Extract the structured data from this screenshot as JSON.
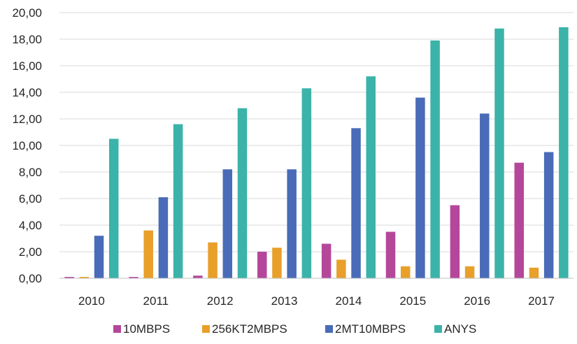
{
  "chart_data": {
    "type": "bar",
    "title": "",
    "xlabel": "",
    "ylabel": "",
    "categories": [
      "2010",
      "2011",
      "2012",
      "2013",
      "2014",
      "2015",
      "2016",
      "2017"
    ],
    "ylim": [
      0,
      20
    ],
    "yticks": [
      "0,00",
      "2,00",
      "4,00",
      "6,00",
      "8,00",
      "10,00",
      "12,00",
      "14,00",
      "16,00",
      "18,00",
      "20,00"
    ],
    "grid": true,
    "legend_position": "bottom",
    "series": [
      {
        "name": "10MBPS",
        "color": "#b5479b",
        "values": [
          0.1,
          0.1,
          0.2,
          2.0,
          2.6,
          3.5,
          5.5,
          8.7
        ]
      },
      {
        "name": "256KT2MBPS",
        "color": "#e8a02a",
        "values": [
          0.1,
          3.6,
          2.7,
          2.3,
          1.4,
          0.9,
          0.9,
          0.8
        ]
      },
      {
        "name": "2MT10MBPS",
        "color": "#4a6bb8",
        "values": [
          3.2,
          6.1,
          8.2,
          8.2,
          11.3,
          13.6,
          12.4,
          9.5
        ]
      },
      {
        "name": "ANYS",
        "color": "#3bb3a9",
        "values": [
          10.5,
          11.6,
          12.8,
          14.3,
          15.2,
          17.9,
          18.8,
          18.9
        ]
      }
    ]
  }
}
